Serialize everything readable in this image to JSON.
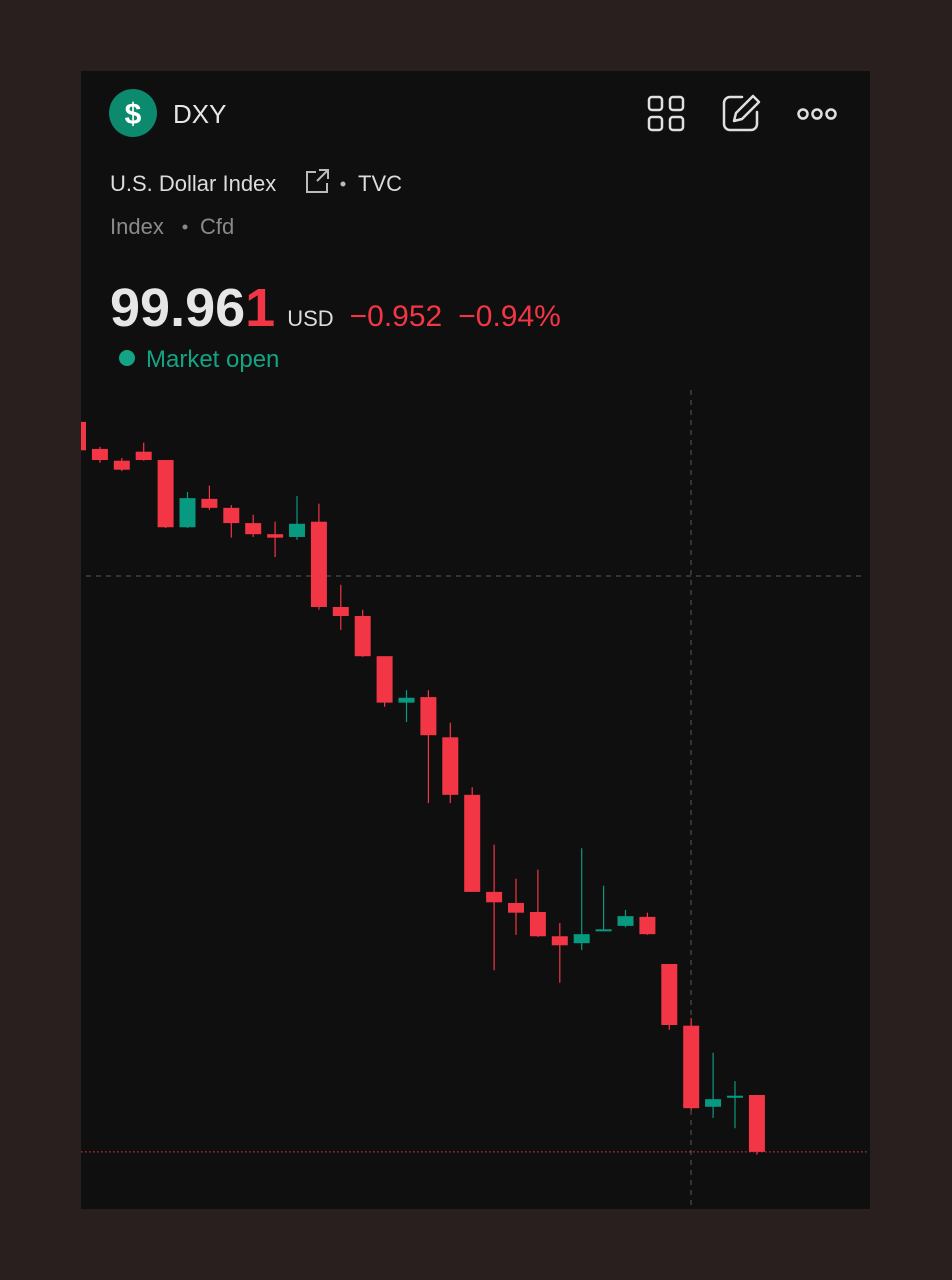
{
  "header": {
    "logo_symbol": "$",
    "ticker": "DXY",
    "name": "U.S. Dollar Index",
    "exchange": "TVC",
    "kind": "Index",
    "instrument": "Cfd"
  },
  "quote": {
    "price_main": "99.96",
    "price_last_digit": "1",
    "currency": "USD",
    "change": "−0.952",
    "change_percent": "−0.94%",
    "status": "Market open"
  },
  "chart_data": {
    "type": "candlestick",
    "up_color": "#089981",
    "down_color": "#f23645",
    "ylim": [
      99.88,
      101.06
    ],
    "open": [
      101.014,
      100.975,
      100.958,
      100.971,
      100.959,
      100.862,
      100.903,
      100.89,
      100.868,
      100.852,
      100.848,
      100.87,
      100.747,
      100.734,
      100.676,
      100.609,
      100.617,
      100.559,
      100.476,
      100.336,
      100.32,
      100.307,
      100.272,
      100.262,
      100.28,
      100.287,
      100.3,
      100.232,
      100.143,
      100.026,
      100.039,
      100.043
    ],
    "high": [
      101.014,
      100.978,
      100.962,
      100.984,
      100.959,
      100.913,
      100.922,
      100.894,
      100.88,
      100.87,
      100.907,
      100.896,
      100.779,
      100.743,
      100.676,
      100.627,
      100.627,
      100.58,
      100.487,
      100.404,
      100.355,
      100.368,
      100.291,
      100.399,
      100.345,
      100.31,
      100.306,
      100.232,
      100.154,
      100.104,
      100.063,
      100.043
    ],
    "low": [
      100.973,
      100.955,
      100.943,
      100.958,
      100.861,
      100.861,
      100.887,
      100.847,
      100.848,
      100.819,
      100.844,
      100.743,
      100.714,
      100.675,
      100.603,
      100.581,
      100.464,
      100.464,
      100.336,
      100.223,
      100.274,
      100.271,
      100.205,
      100.252,
      100.28,
      100.285,
      100.274,
      100.137,
      100.021,
      100.01,
      99.995,
      99.957
    ],
    "close": [
      100.973,
      100.959,
      100.945,
      100.959,
      100.862,
      100.904,
      100.89,
      100.868,
      100.852,
      100.847,
      100.867,
      100.747,
      100.734,
      100.676,
      100.609,
      100.616,
      100.562,
      100.476,
      100.336,
      100.321,
      100.306,
      100.272,
      100.259,
      100.275,
      100.282,
      100.301,
      100.275,
      100.144,
      100.024,
      100.037,
      100.042,
      99.961
    ]
  }
}
